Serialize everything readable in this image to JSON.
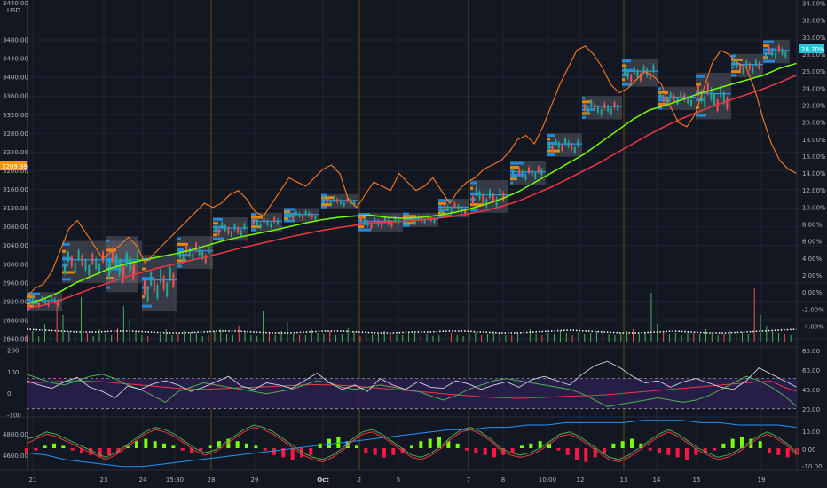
{
  "header": {
    "symbol_price": "3440.00",
    "currency": "USD"
  },
  "colors": {
    "background": "#131722",
    "grid": "#1f2433",
    "candle_up": "#26a69a",
    "candle_down": "#ef5350",
    "profile_blue": "#2196f3",
    "profile_orange": "#ff9800",
    "box_fill": "#787b86",
    "ma_fast": "#4caf50",
    "ma_green_light": "#76ff03",
    "ma_slow": "#f23645",
    "overlay_orange": "#ff7b1a",
    "volume_up": "#4caf50",
    "volume_down": "#ef5350",
    "volume_ma": "#ffffff",
    "rsi_band": "#2a1f4d",
    "hist_up": "#76ff03",
    "hist_down": "#ff1744",
    "osc_blue": "#2196f3",
    "price_tag": "#ff9800",
    "pct_tag": "#26c6da"
  },
  "chart_data": {
    "type": "line",
    "x_tick_labels": [
      "21",
      "23",
      "24",
      "15:30",
      "28",
      "29",
      "Oct",
      "2",
      "5",
      "7",
      "8",
      "10:00",
      "12",
      "13",
      "14",
      "15",
      "19"
    ],
    "price_axis": {
      "range": [
        2820,
        3520
      ],
      "ticks": [
        "3480.00",
        "3440.00",
        "3400.00",
        "3360.00",
        "3320.00",
        "3280.00",
        "3240.00",
        "3200.00",
        "3160.00",
        "3120.00",
        "3080.00",
        "3040.00",
        "3000.00",
        "2960.00",
        "2920.00",
        "2880.00",
        "2840.00"
      ],
      "current_price_label": "3209.99"
    },
    "percent_axis": {
      "range": [
        -6,
        34
      ],
      "ticks": [
        "34.00%",
        "32.00%",
        "30.00%",
        "28.00%",
        "26.00%",
        "24.00%",
        "22.00%",
        "20.00%",
        "18.00%",
        "16.00%",
        "14.00%",
        "12.00%",
        "10.00%",
        "8.00%",
        "6.00%",
        "4.00%",
        "2.00%",
        "0.00%",
        "-2.00%",
        "-4.00%"
      ],
      "current_percent_label": "28.70%"
    },
    "overlay_percent_series": [
      -0.5,
      0.5,
      1.0,
      2.5,
      5.0,
      7.5,
      8.5,
      7.0,
      5.5,
      4.0,
      4.8,
      5.5,
      6.5,
      5.5,
      3.5,
      4.5,
      5.5,
      6.5,
      7.5,
      8.5,
      9.5,
      10.5,
      10.0,
      10.5,
      11.5,
      12.0,
      11.0,
      9.5,
      9.0,
      10.5,
      12.0,
      13.5,
      13.0,
      12.5,
      13.5,
      14.5,
      15.0,
      14.0,
      11.0,
      10.0,
      11.5,
      13.0,
      12.5,
      12.0,
      14.0,
      13.0,
      12.0,
      12.5,
      13.5,
      12.0,
      10.5,
      12.0,
      13.0,
      13.5,
      14.5,
      15.0,
      15.5,
      16.5,
      18.0,
      18.5,
      17.5,
      19.5,
      22.0,
      24.5,
      26.5,
      28.5,
      29.0,
      28.0,
      26.5,
      24.5,
      23.5,
      24.0,
      25.0,
      26.0,
      25.5,
      24.5,
      22.0,
      20.0,
      19.5,
      21.0,
      24.0,
      27.0,
      28.5,
      28.0,
      27.0,
      26.5,
      24.0,
      20.5,
      17.5,
      15.5,
      14.5,
      14.0
    ],
    "ma_fast_price_series": [
      2915,
      2925,
      2940,
      2960,
      2975,
      2990,
      3000,
      3008,
      3015,
      3022,
      3030,
      3040,
      3050,
      3058,
      3065,
      3072,
      3080,
      3088,
      3095,
      3100,
      3103,
      3105,
      3100,
      3098,
      3100,
      3104,
      3110,
      3118,
      3128,
      3140,
      3155,
      3175,
      3195,
      3215,
      3235,
      3260,
      3285,
      3310,
      3330,
      3340,
      3352,
      3365,
      3375,
      3385,
      3395,
      3405,
      3420,
      3430
    ],
    "ma_slow_price_series": [
      2905,
      2912,
      2922,
      2935,
      2948,
      2960,
      2972,
      2982,
      2992,
      3000,
      3008,
      3016,
      3025,
      3034,
      3042,
      3050,
      3058,
      3065,
      3072,
      3078,
      3083,
      3088,
      3090,
      3092,
      3095,
      3098,
      3102,
      3108,
      3115,
      3124,
      3135,
      3150,
      3165,
      3182,
      3200,
      3218,
      3238,
      3258,
      3278,
      3296,
      3312,
      3326,
      3340,
      3352,
      3364,
      3376,
      3390,
      3405
    ],
    "volume_panel": {
      "bars": [
        8,
        12,
        6,
        20,
        10,
        45,
        30,
        12,
        8,
        50,
        10,
        6,
        14,
        9,
        7,
        15,
        40,
        25,
        12,
        8,
        6,
        10,
        9,
        14,
        7,
        9,
        12,
        11,
        10,
        6,
        8,
        12,
        14,
        9,
        7,
        18,
        12,
        8,
        6,
        35,
        10,
        8,
        12,
        22,
        9,
        7,
        8,
        14,
        10,
        9,
        12,
        8,
        9,
        15,
        11,
        6,
        8,
        7,
        9,
        12,
        10,
        8,
        7,
        11,
        10,
        8,
        9,
        6,
        8,
        12,
        10,
        7,
        6,
        9,
        11,
        8,
        9,
        12,
        10,
        8,
        7,
        9,
        11,
        14,
        9,
        8,
        10,
        9,
        12,
        10,
        8,
        11,
        9,
        10,
        12,
        11,
        9,
        8,
        10,
        12,
        14,
        9,
        11,
        55,
        20,
        12,
        9,
        10,
        8,
        12,
        10,
        9,
        14,
        11,
        8,
        9,
        12,
        10,
        11,
        9,
        60,
        30,
        18,
        12,
        10,
        9,
        8,
        11
      ],
      "ma_series": [
        14,
        13,
        12,
        11,
        11,
        12,
        12,
        11,
        10,
        10,
        11,
        12,
        12,
        11,
        10,
        10,
        11,
        12,
        12,
        11,
        10,
        10,
        11,
        11,
        12,
        12,
        11,
        10,
        10,
        11,
        12,
        13,
        12,
        11,
        10,
        10,
        11,
        12,
        11,
        10,
        10,
        11,
        12,
        13,
        14
      ]
    },
    "rsi_panel": {
      "left_ticks": [
        "200",
        "100",
        "0",
        "-100"
      ],
      "right_ticks": [
        "80.00",
        "60.00",
        "40.00",
        "20.00"
      ],
      "white_series": [
        60,
        40,
        25,
        55,
        75,
        30,
        10,
        -20,
        35,
        20,
        45,
        60,
        40,
        10,
        30,
        55,
        80,
        35,
        20,
        50,
        40,
        25,
        60,
        95,
        50,
        20,
        40,
        10,
        70,
        40,
        20,
        55,
        30,
        25,
        60,
        45,
        20,
        40,
        55,
        30,
        65,
        80,
        60,
        40,
        90,
        130,
        150,
        120,
        80,
        50,
        60,
        30,
        55,
        70,
        50,
        30,
        20,
        60,
        120,
        90,
        60,
        30
      ],
      "green_series": [
        90,
        70,
        50,
        40,
        60,
        80,
        90,
        70,
        40,
        20,
        -10,
        -40,
        10,
        30,
        50,
        40,
        30,
        20,
        10,
        0,
        10,
        20,
        40,
        60,
        50,
        30,
        20,
        30,
        40,
        30,
        20,
        10,
        -10,
        -30,
        -10,
        20,
        40,
        60,
        70,
        60,
        50,
        40,
        30,
        20,
        0,
        -30,
        -60,
        -50,
        -40,
        -30,
        -20,
        -30,
        -40,
        -30,
        -10,
        20,
        50,
        80,
        60,
        30,
        -10,
        -60
      ],
      "red_series": [
        50,
        52,
        55,
        58,
        60,
        58,
        55,
        50,
        45,
        40,
        35,
        30,
        25,
        22,
        20,
        22,
        25,
        28,
        30,
        32,
        35,
        38,
        40,
        42,
        40,
        38,
        35,
        30,
        25,
        20,
        15,
        10,
        5,
        0,
        -5,
        -10,
        -15,
        -18,
        -20,
        -22,
        -20,
        -18,
        -15,
        -12,
        -10,
        -8,
        -5,
        0,
        5,
        10,
        15,
        20,
        25,
        30,
        35,
        40,
        45,
        50,
        55,
        58,
        30,
        10
      ]
    },
    "macd_panel": {
      "left_ticks": [
        "4800.00",
        "4600.00"
      ],
      "right_ticks": [
        "10.00",
        "0.00",
        "-10.00"
      ],
      "hist": [
        -2,
        -1,
        1,
        2,
        1,
        -1,
        -2,
        -3,
        -4,
        -3,
        -2,
        1,
        3,
        4,
        3,
        2,
        1,
        -1,
        -2,
        -1,
        1,
        3,
        4,
        3,
        2,
        1,
        -1,
        -3,
        -4,
        -5,
        -4,
        -3,
        2,
        4,
        5,
        3,
        1,
        -2,
        -3,
        -4,
        -3,
        -2,
        1,
        3,
        4,
        5,
        3,
        2,
        -1,
        -2,
        -3,
        -4,
        -3,
        -2,
        1,
        2,
        3,
        2,
        -1,
        -3,
        -5,
        -6,
        -4,
        -2,
        2,
        3,
        4,
        2,
        -1,
        -2,
        -3,
        -4,
        -5,
        -3,
        -2,
        -1,
        2,
        4,
        5,
        4,
        3,
        -2,
        -3,
        -4,
        -3
      ],
      "red_line": [
        2,
        4,
        6,
        5,
        3,
        1,
        -1,
        -3,
        -5,
        -3,
        0,
        3,
        6,
        8,
        7,
        5,
        2,
        -1,
        -3,
        -2,
        1,
        4,
        7,
        9,
        8,
        6,
        3,
        0,
        -3,
        -5,
        -6,
        -4,
        -1,
        3,
        6,
        7,
        5,
        2,
        -1,
        -4,
        -5,
        -3,
        0,
        4,
        7,
        8,
        6,
        3,
        -1,
        -3,
        -4,
        -3,
        -1,
        2,
        5,
        6,
        4,
        1,
        -2,
        -5,
        -6,
        -4,
        -1,
        2,
        5,
        7,
        5,
        2,
        -1,
        -3,
        -5,
        -4,
        -2,
        1,
        4,
        6,
        4,
        1,
        -3
      ],
      "green_line": [
        4,
        5,
        7,
        6,
        4,
        2,
        0,
        -2,
        -4,
        -2,
        1,
        4,
        7,
        9,
        8,
        6,
        3,
        0,
        -2,
        -1,
        2,
        5,
        8,
        10,
        9,
        7,
        4,
        1,
        -2,
        -4,
        -5,
        -3,
        0,
        4,
        7,
        8,
        6,
        3,
        0,
        -3,
        -4,
        -2,
        1,
        5,
        8,
        9,
        7,
        4,
        0,
        -2,
        -3,
        -2,
        0,
        3,
        6,
        7,
        5,
        2,
        -1,
        -4,
        -5,
        -3,
        0,
        3,
        6,
        8,
        6,
        3,
        0,
        -2,
        -4,
        -3,
        -1,
        2,
        5,
        7,
        5,
        2,
        -2
      ],
      "blue_line": [
        -2,
        -3,
        -5,
        -6,
        -7,
        -8,
        -8,
        -7,
        -6,
        -5,
        -4,
        -3,
        -2,
        -1,
        0,
        1,
        2,
        3,
        4,
        5,
        6,
        7,
        8,
        8,
        9,
        9,
        10,
        10,
        11,
        11,
        11,
        11,
        12,
        12,
        12,
        11,
        11,
        10,
        10,
        10,
        9
      ]
    },
    "grid": true,
    "legend": "none"
  }
}
